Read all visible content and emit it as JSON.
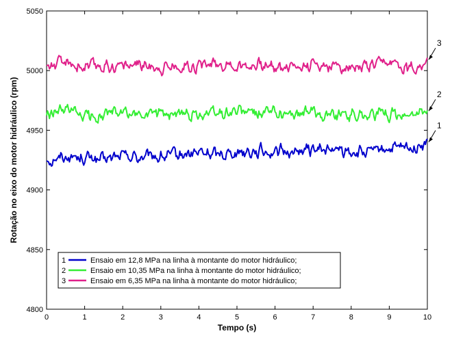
{
  "chart_data": {
    "type": "line",
    "title": "",
    "xlabel": "Tempo (s)",
    "ylabel": "Rotação no eixo do motor hidráulico (rpm)",
    "xlim": [
      0,
      10
    ],
    "ylim": [
      4800,
      5050
    ],
    "xticks": [
      0,
      1,
      2,
      3,
      4,
      5,
      6,
      7,
      8,
      9,
      10
    ],
    "xtick_labels": [
      "0",
      "1",
      "2",
      "3",
      "4",
      "5",
      "6",
      "7",
      "8",
      "9",
      "10"
    ],
    "yticks": [
      4800,
      4850,
      4900,
      4950,
      5000,
      5050
    ],
    "ytick_labels": [
      "4800",
      "4850",
      "4900",
      "4950",
      "5000",
      "5050"
    ],
    "grid": false,
    "legend_position": "bottom-left",
    "series": [
      {
        "label": "1",
        "name": "Ensaio em 12,8 MPa na linha à montante do motor hidráulico;",
        "color": "#0000cc",
        "x": [
          0,
          0.5,
          1,
          1.5,
          2,
          2.5,
          3,
          3.5,
          4,
          4.5,
          5,
          5.5,
          6,
          6.5,
          7,
          7.5,
          8,
          8.5,
          9,
          9.5,
          10
        ],
        "y": [
          4925,
          4928,
          4927,
          4925,
          4929,
          4927,
          4928,
          4929,
          4931,
          4930,
          4932,
          4933,
          4932,
          4932,
          4934,
          4933,
          4932,
          4931,
          4935,
          4934,
          4939
        ],
        "end_label": "1"
      },
      {
        "label": "2",
        "name": "Ensaio em 10,35 MPa na linha à montante do motor hidráulico;",
        "color": "#33ee33",
        "x": [
          0,
          0.5,
          1,
          1.5,
          2,
          2.5,
          3,
          3.5,
          4,
          4.5,
          5,
          5.5,
          6,
          6.5,
          7,
          7.5,
          8,
          8.5,
          9,
          9.5,
          10
        ],
        "y": [
          4962,
          4966,
          4962,
          4963,
          4965,
          4962,
          4965,
          4963,
          4964,
          4964,
          4966,
          4964,
          4965,
          4963,
          4965,
          4963,
          4964,
          4963,
          4964,
          4962,
          4965
        ],
        "end_label": "2"
      },
      {
        "label": "3",
        "name": "Ensaio em 6,35 MPa na linha à montante do motor hidráulico;",
        "color": "#e0208a",
        "x": [
          0,
          0.5,
          1,
          1.5,
          2,
          2.5,
          3,
          3.5,
          4,
          4.5,
          5,
          5.5,
          6,
          6.5,
          7,
          7.5,
          8,
          8.5,
          9,
          9.5,
          10
        ],
        "y": [
          5004,
          5006,
          5003,
          5004,
          5004,
          5005,
          5003,
          5004,
          5005,
          5006,
          5004,
          5005,
          5003,
          5004,
          5005,
          5004,
          5003,
          5003,
          5006,
          5002,
          5008
        ],
        "end_label": "3"
      }
    ]
  }
}
